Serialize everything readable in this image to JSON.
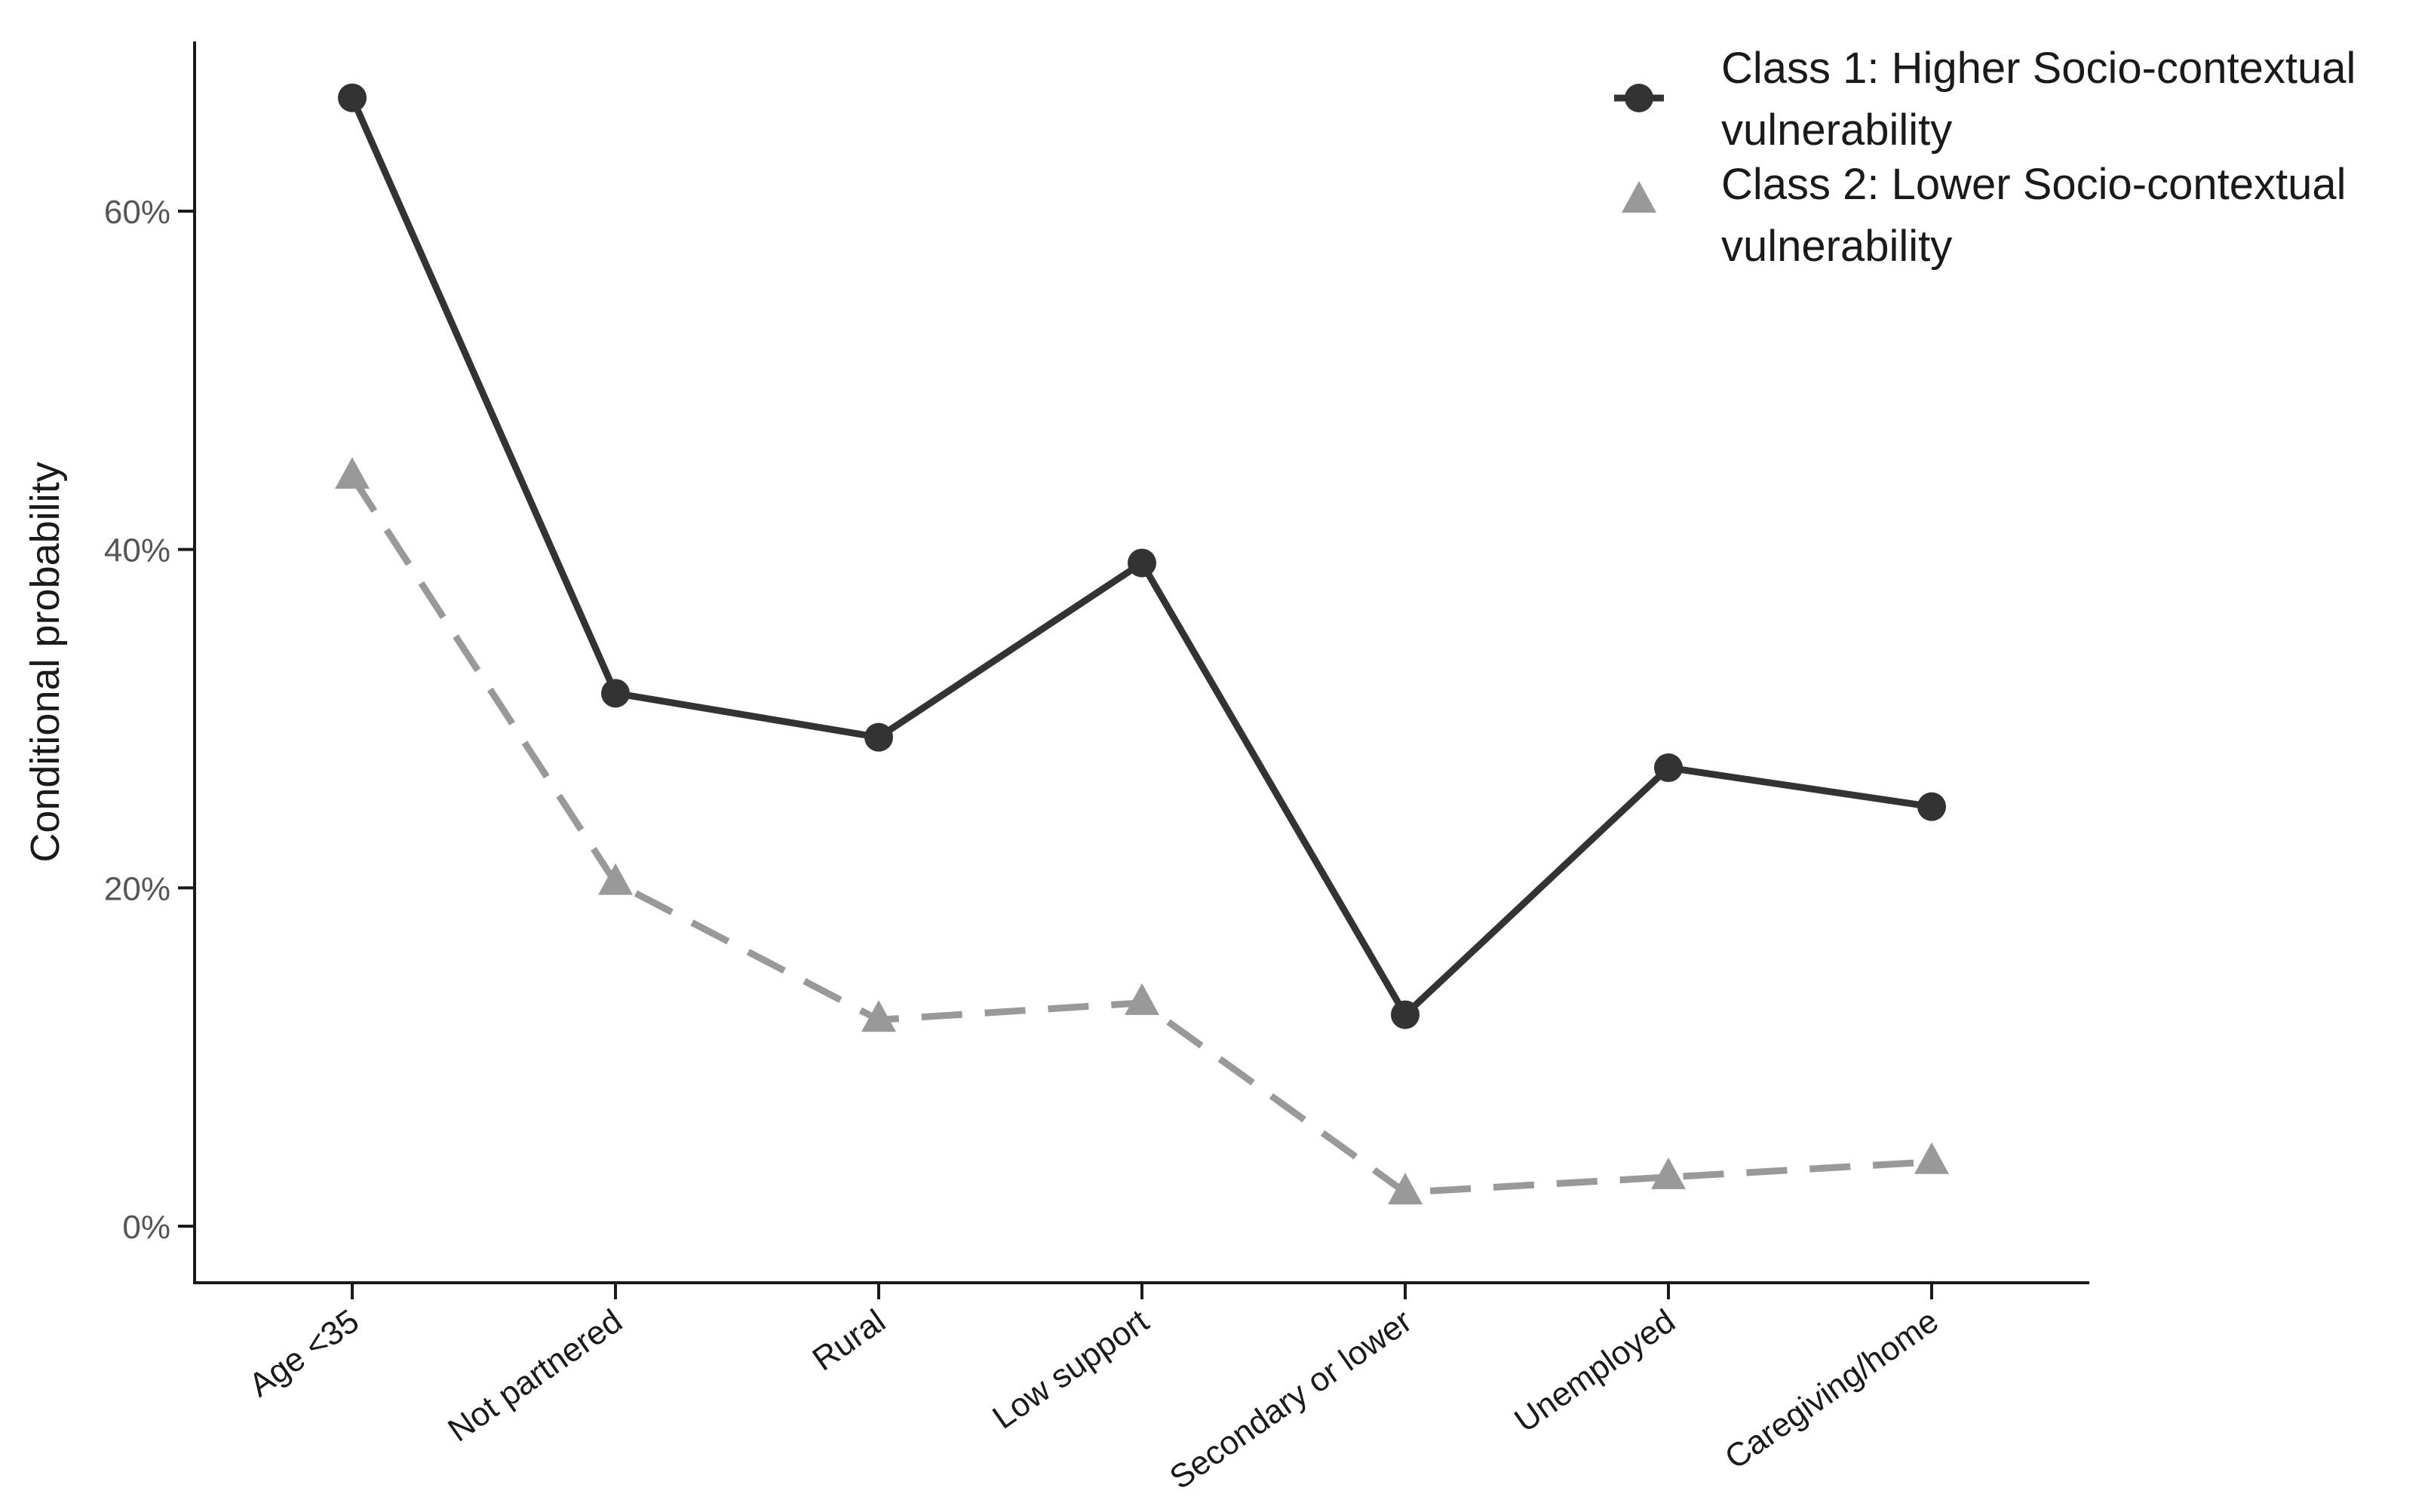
{
  "chart_data": {
    "type": "line",
    "title": "",
    "xlabel": "",
    "ylabel": "Conditional probability",
    "categories": [
      "Age <35",
      "Not partnered",
      "Rural",
      "Low support",
      "Secondary or lower",
      "Unemployed",
      "Caregiving/home"
    ],
    "ylim": [
      -0.033,
      0.7
    ],
    "yticks": [
      0,
      0.2,
      0.4,
      0.6
    ],
    "ytick_labels": [
      "0%",
      "20%",
      "40%",
      "60%"
    ],
    "grid": false,
    "legend_position": "top-right",
    "series": [
      {
        "name": "Class 1: Higher Socio-contextual vulnerability",
        "legend_lines": [
          "Class 1: Higher Socio-contextual",
          "vulnerability"
        ],
        "values": [
          0.667,
          0.315,
          0.289,
          0.392,
          0.125,
          0.271,
          0.248
        ],
        "color": "#333333",
        "line_style": "solid",
        "marker": "circle"
      },
      {
        "name": "Class 2: Lower Socio-contextual vulnerability",
        "legend_lines": [
          "Class 2: Lower Socio-contextual",
          "vulnerability"
        ],
        "values": [
          0.443,
          0.203,
          0.122,
          0.132,
          0.02,
          0.029,
          0.038
        ],
        "color": "#999999",
        "line_style": "dashed",
        "marker": "triangle"
      }
    ]
  }
}
